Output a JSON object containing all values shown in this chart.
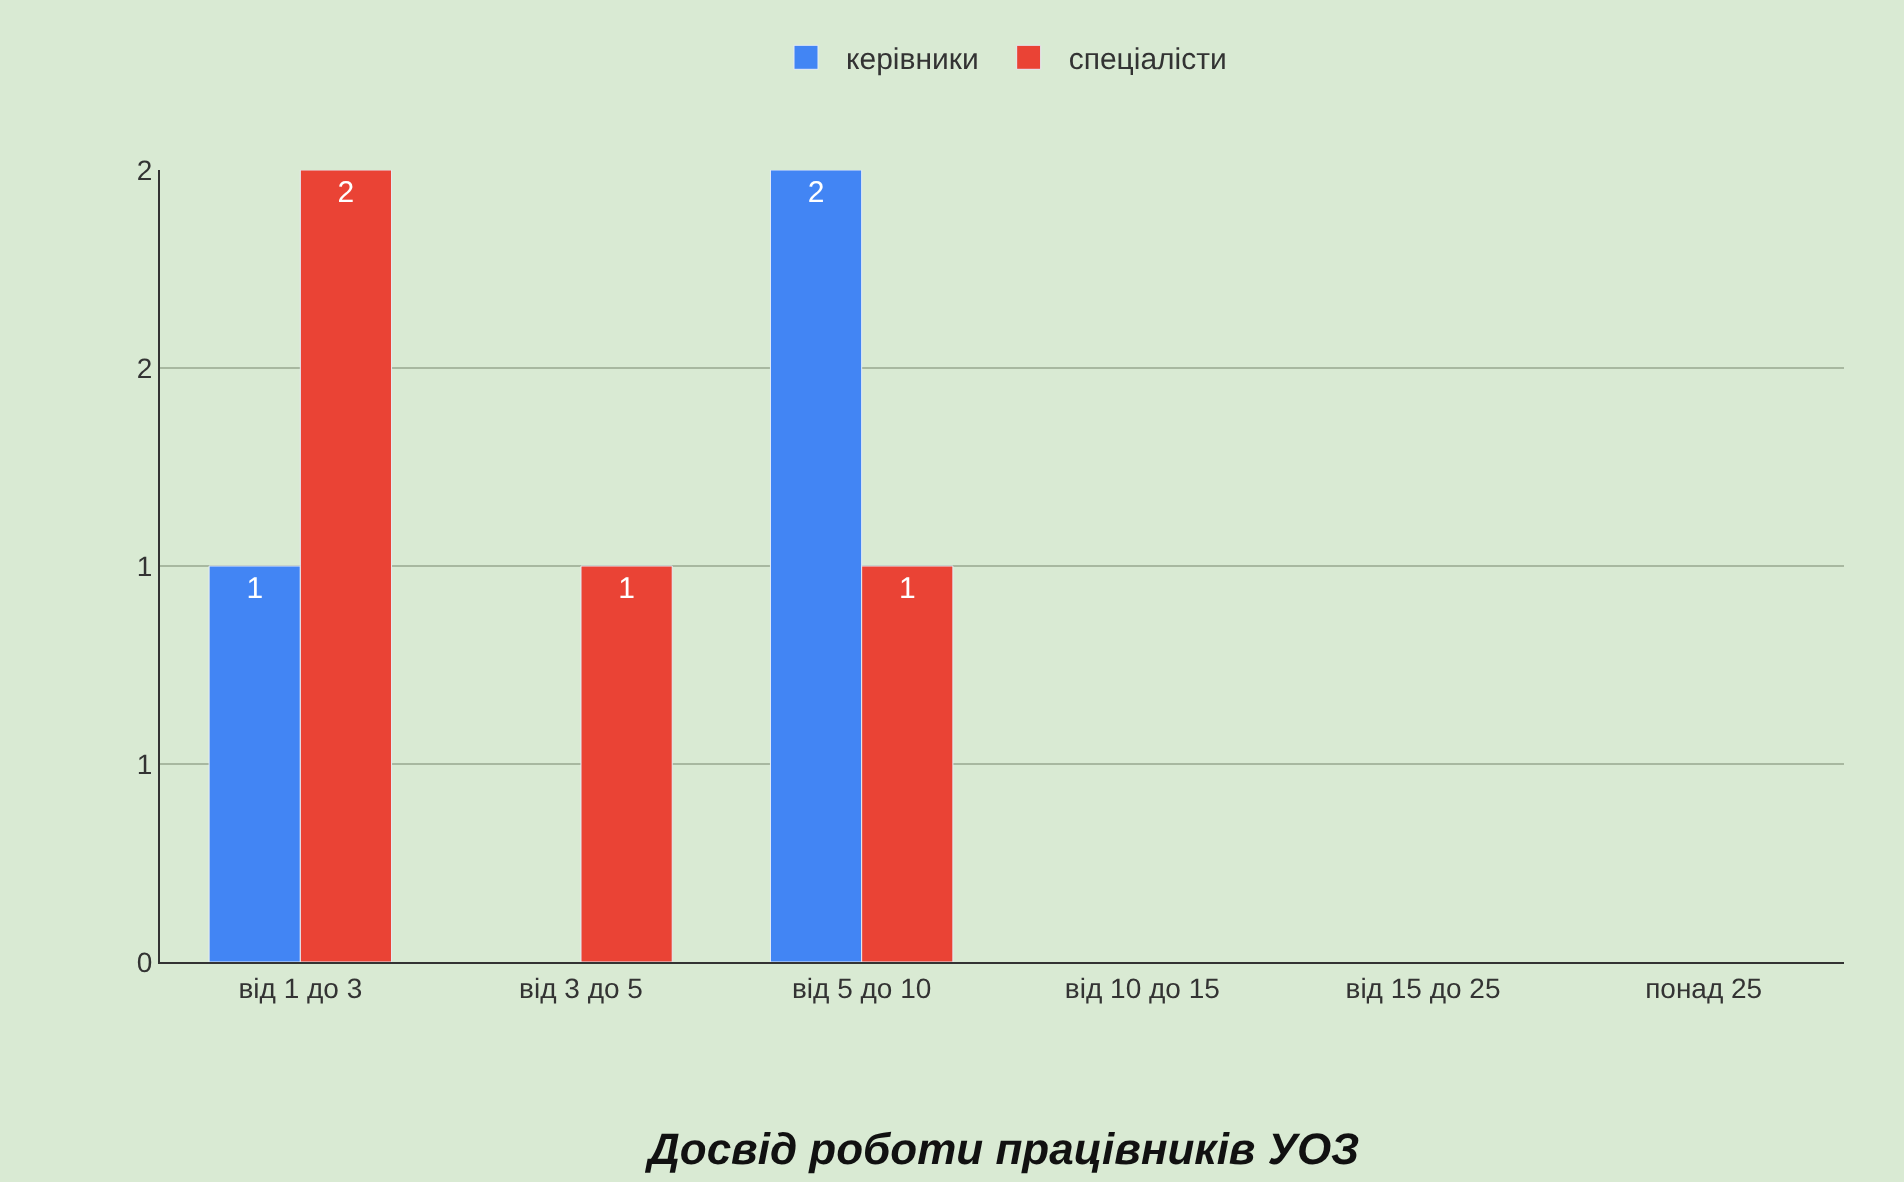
{
  "chart_data": {
    "type": "bar",
    "title": "Досвід роботи працівників УОЗ",
    "categories": [
      "від 1 до 3",
      "від 3 до 5",
      "від 5 до 10",
      "від 10 до 15",
      "від 15 до 25",
      "понад 25"
    ],
    "series": [
      {
        "name": "керівники",
        "color": "#4285f4",
        "values": [
          1,
          null,
          2,
          null,
          null,
          null
        ]
      },
      {
        "name": "спеціалісти",
        "color": "#ea4335",
        "values": [
          2,
          1,
          1,
          null,
          null,
          null
        ]
      }
    ],
    "ylim": [
      0,
      2
    ],
    "yticks": [
      0,
      {
        "value": 0.5,
        "label": "1"
      },
      1,
      {
        "value": 1.5,
        "label": "2"
      },
      2
    ],
    "grid": "y",
    "legend": "top",
    "data_labels": true
  }
}
